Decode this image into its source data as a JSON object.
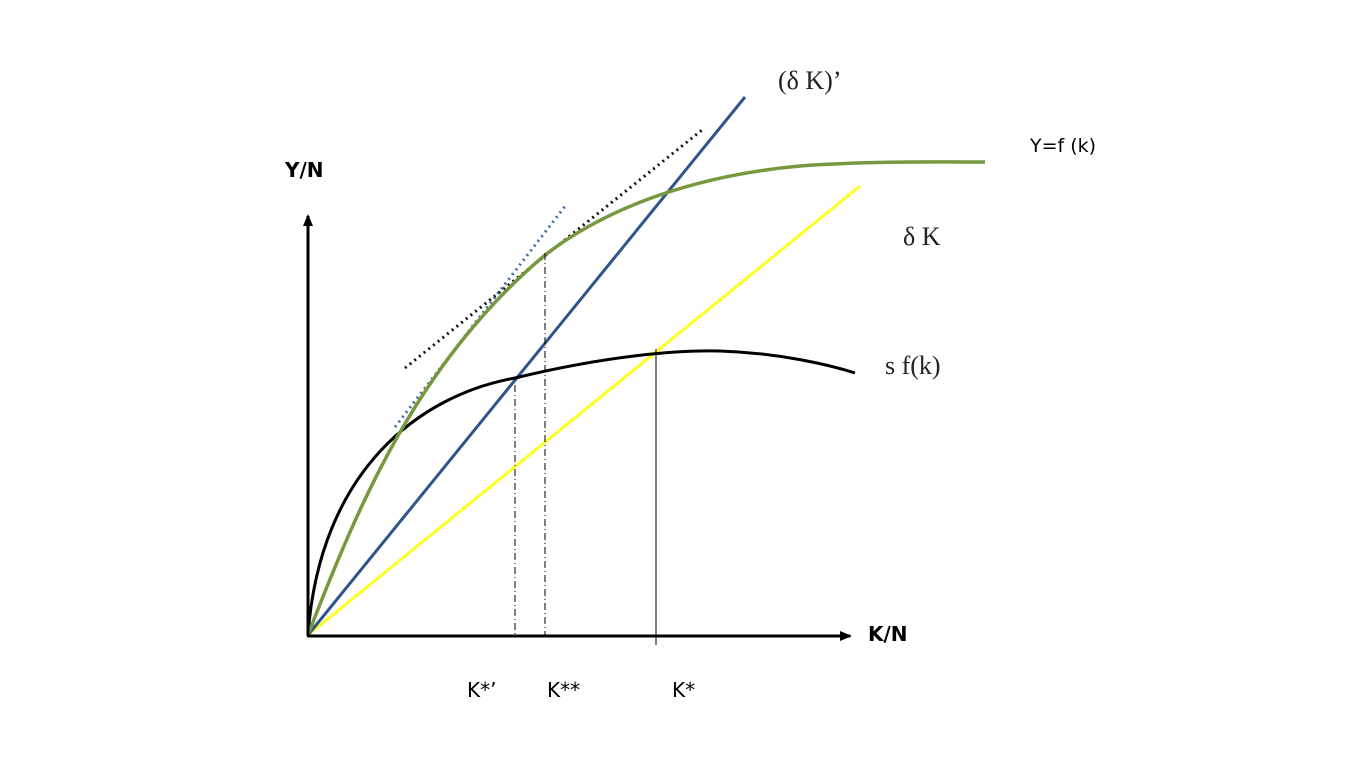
{
  "diagram": {
    "axes": {
      "y_label": "Y/N",
      "x_label": "K/N"
    },
    "curves": {
      "production": {
        "label": "Y=f (k)",
        "color": "#77983e"
      },
      "depreciation_new": {
        "label": "(δ K)’",
        "color": "#2e5589"
      },
      "depreciation": {
        "label": "δ K",
        "color": "#ffff22"
      },
      "savings": {
        "label": "s f(k)",
        "color": "#000000"
      }
    },
    "tangent_colors": {
      "black_dotted": "#111111",
      "blue_dotted": "#3f6fa5"
    },
    "steady_states": {
      "k_star_prime": "K*’",
      "k_double_star": "K**",
      "k_star": "K*"
    }
  }
}
